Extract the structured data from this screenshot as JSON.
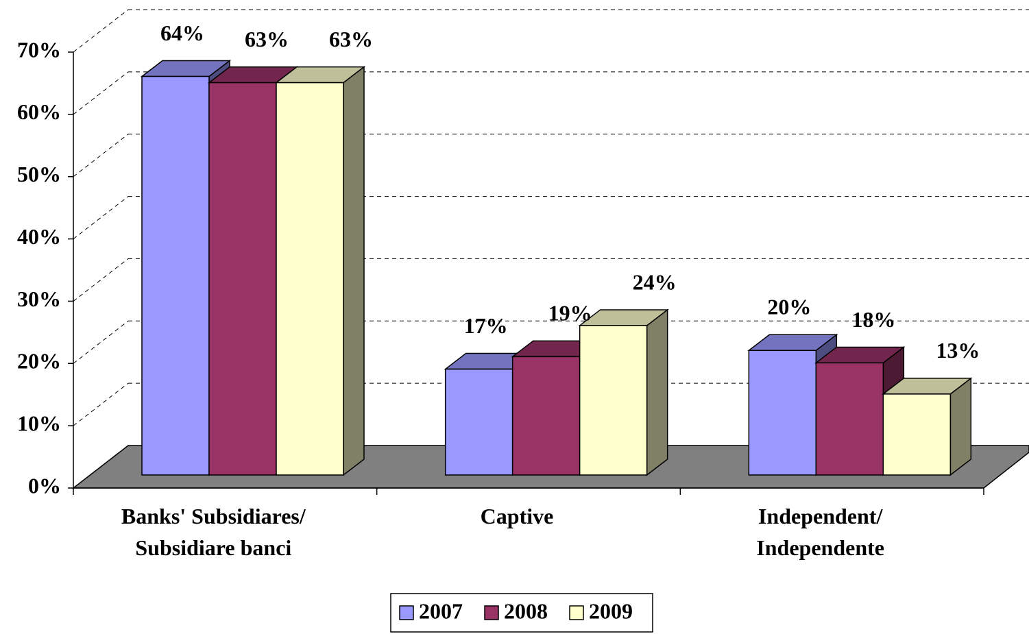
{
  "chart_data": {
    "type": "bar3d",
    "categories": [
      "Banks' Subsidiares/ Subsidiare banci",
      "Captive",
      "Independent/ Independente"
    ],
    "series": [
      {
        "name": "2007",
        "color": "#9999ff",
        "values": [
          64,
          17,
          20
        ],
        "value_labels": [
          "64%",
          "17%",
          "20%"
        ]
      },
      {
        "name": "2008",
        "color": "#993366",
        "values": [
          63,
          19,
          18
        ],
        "value_labels": [
          "63%",
          "19%",
          "18%"
        ]
      },
      {
        "name": "2009",
        "color": "#ffffcc",
        "values": [
          63,
          24,
          13
        ],
        "value_labels": [
          "63%",
          "24%",
          "13%"
        ]
      }
    ],
    "ylim": [
      0,
      70
    ],
    "yticks": [
      {
        "value": 0,
        "label": "0%"
      },
      {
        "value": 10,
        "label": "10%"
      },
      {
        "value": 20,
        "label": "20%"
      },
      {
        "value": 30,
        "label": "30%"
      },
      {
        "value": 40,
        "label": "40%"
      },
      {
        "value": 50,
        "label": "50%"
      },
      {
        "value": 60,
        "label": "60%"
      },
      {
        "value": 70,
        "label": "70%"
      }
    ],
    "grid": true,
    "legend": "bottom"
  }
}
